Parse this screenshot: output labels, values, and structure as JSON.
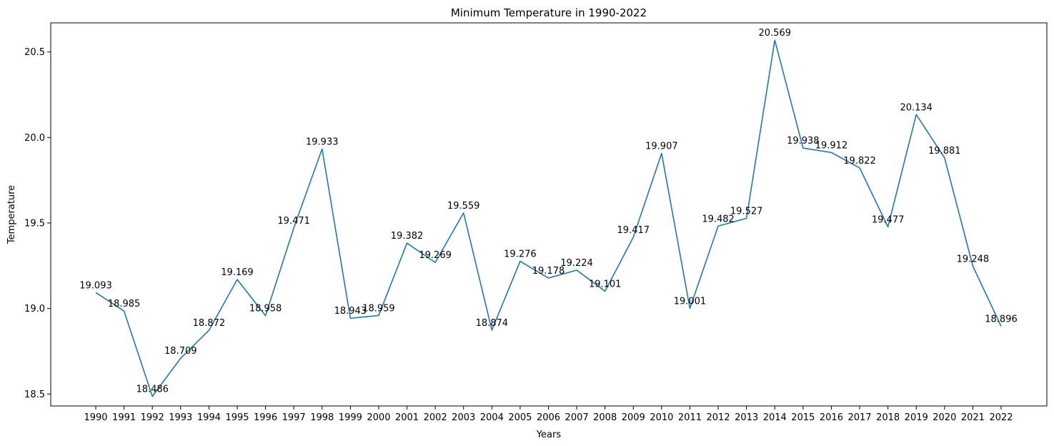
{
  "chart_data": {
    "type": "line",
    "title": "Minimum Temperature in 1990-2022",
    "xlabel": "Years",
    "ylabel": "Temperature",
    "categories": [
      "1990",
      "1991",
      "1992",
      "1993",
      "1994",
      "1995",
      "1996",
      "1997",
      "1998",
      "1999",
      "2000",
      "2001",
      "2002",
      "2003",
      "2004",
      "2005",
      "2006",
      "2007",
      "2008",
      "2009",
      "2010",
      "2011",
      "2012",
      "2013",
      "2014",
      "2015",
      "2016",
      "2017",
      "2018",
      "2019",
      "2020",
      "2021",
      "2022"
    ],
    "values": [
      19.093,
      18.985,
      18.486,
      18.709,
      18.872,
      19.169,
      18.958,
      19.471,
      19.933,
      18.943,
      18.959,
      19.382,
      19.269,
      19.559,
      18.874,
      19.276,
      19.178,
      19.224,
      19.101,
      19.417,
      19.907,
      19.001,
      19.482,
      19.527,
      20.569,
      19.938,
      19.912,
      19.822,
      19.477,
      20.134,
      19.881,
      19.248,
      18.896
    ],
    "data_labels": [
      "19.093",
      "18.985",
      "18.486",
      "18.709",
      "18.872",
      "19.169",
      "18.958",
      "19.471",
      "19.933",
      "18.943",
      "18.959",
      "19.382",
      "19.269",
      "19.559",
      "18.874",
      "19.276",
      "19.178",
      "19.224",
      "19.101",
      "19.417",
      "19.907",
      "19.001",
      "19.482",
      "19.527",
      "20.569",
      "19.938",
      "19.912",
      "19.822",
      "19.477",
      "20.134",
      "19.881",
      "19.248",
      "18.896"
    ],
    "yticks": [
      "18.5",
      "19.0",
      "19.5",
      "20.0",
      "20.5"
    ],
    "ylim": [
      18.43,
      20.67
    ],
    "grid": false,
    "line_color": "#1f77b4"
  }
}
